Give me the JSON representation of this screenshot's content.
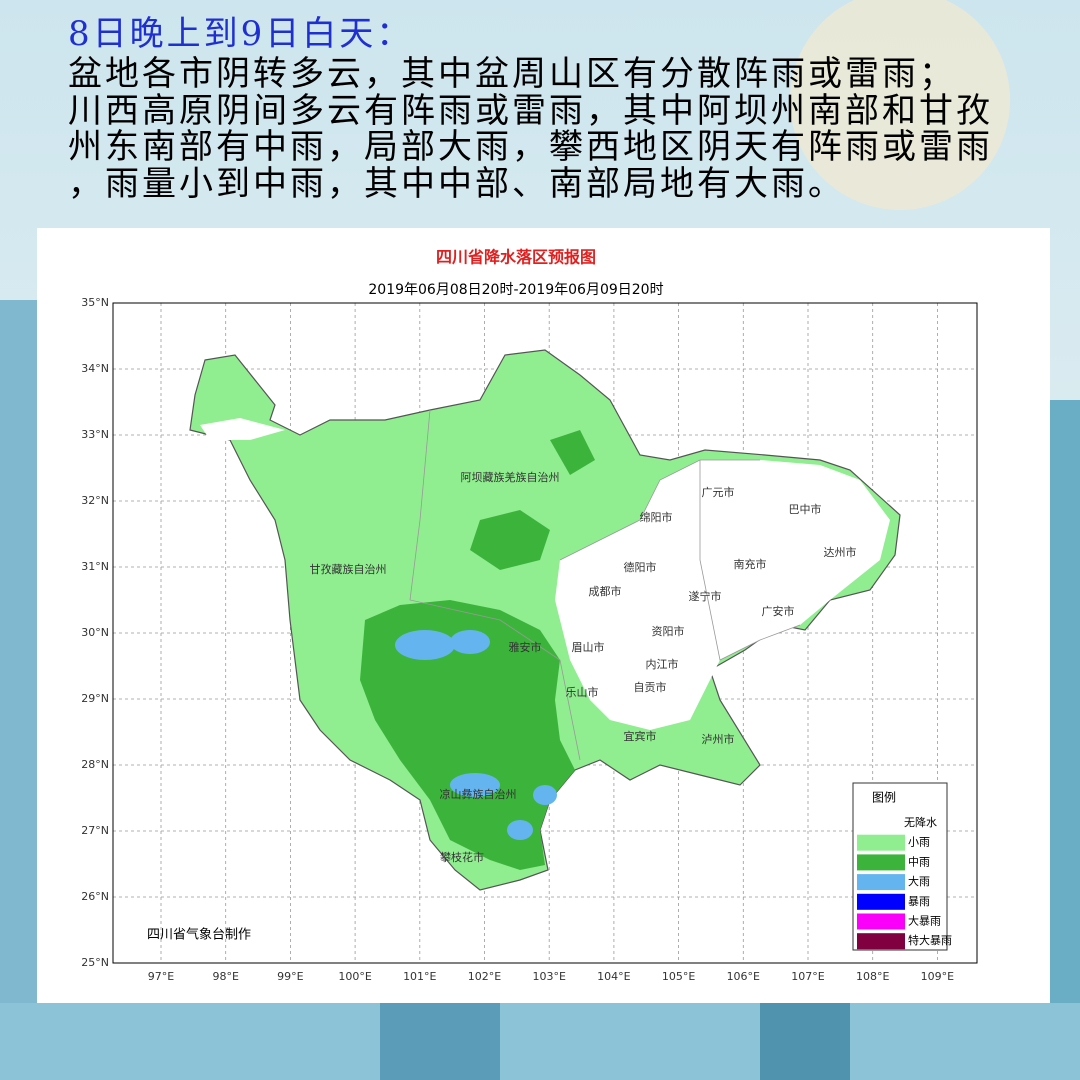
{
  "header": {
    "title": "8日晚上到9日白天：",
    "lines": [
      "盆地各市阴转多云，其中盆周山区有分散阵雨或雷雨；",
      "川西高原阴间多云有阵雨或雷雨，其中阿坝州南部和甘孜",
      "州东南部有中雨，局部大雨，攀西地区阴天有阵雨或雷雨",
      "，雨量小到中雨，其中中部、南部局地有大雨。"
    ]
  },
  "map": {
    "title": "四川省降水落区预报图",
    "subtitle": "2019年06月08日20时-2019年06月09日20时",
    "lat_labels": [
      "35°N",
      "34°N",
      "33°N",
      "32°N",
      "31°N",
      "30°N",
      "29°N",
      "28°N",
      "27°N",
      "26°N",
      "25°N"
    ],
    "lon_labels": [
      "97°E",
      "98°E",
      "99°E",
      "100°E",
      "101°E",
      "102°E",
      "103°E",
      "104°E",
      "105°E",
      "106°E",
      "107°E",
      "108°E",
      "109°E"
    ],
    "places": [
      "阿坝藏族羌族自治州",
      "广元市",
      "巴中市",
      "绵阳市",
      "达州市",
      "甘孜藏族自治州",
      "德阳市",
      "南充市",
      "成都市",
      "遂宁市",
      "广安市",
      "资阳市",
      "雅安市",
      "眉山市",
      "内江市",
      "自贡市",
      "乐山市",
      "宜宾市",
      "泸州市",
      "凉山彝族自治州",
      "攀枝花市"
    ],
    "legend": {
      "title": "图例",
      "items": [
        {
          "label": "无降水",
          "color": "#ffffff"
        },
        {
          "label": "小雨",
          "color": "#90ee90"
        },
        {
          "label": "中雨",
          "color": "#3cb43c"
        },
        {
          "label": "大雨",
          "color": "#64b4f0"
        },
        {
          "label": "暴雨",
          "color": "#0000ff"
        },
        {
          "label": "大暴雨",
          "color": "#fa00fa"
        },
        {
          "label": "特大暴雨",
          "color": "#800040"
        }
      ]
    },
    "credit": "四川省气象台制作"
  }
}
